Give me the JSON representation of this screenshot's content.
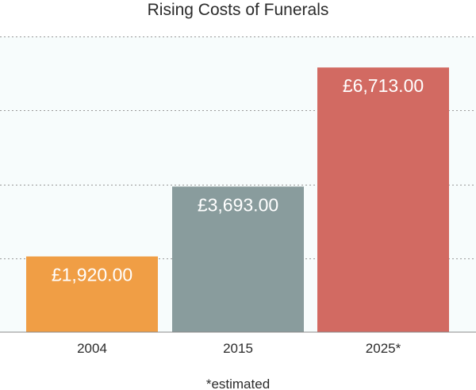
{
  "chart_data": {
    "type": "bar",
    "title": "Rising Costs of Funerals",
    "categories": [
      "2004",
      "2015",
      "2025*"
    ],
    "values": [
      1920,
      3693,
      6713
    ],
    "value_labels": [
      "£1,920.00",
      "£3,693.00",
      "£6,713.00"
    ],
    "bar_colors": [
      "#f09e45",
      "#899c9d",
      "#d26a62"
    ],
    "ylim": [
      0,
      7500
    ],
    "grid": true,
    "legend": "none",
    "footnote": "*estimated",
    "background_color": "#f7fcfc"
  }
}
